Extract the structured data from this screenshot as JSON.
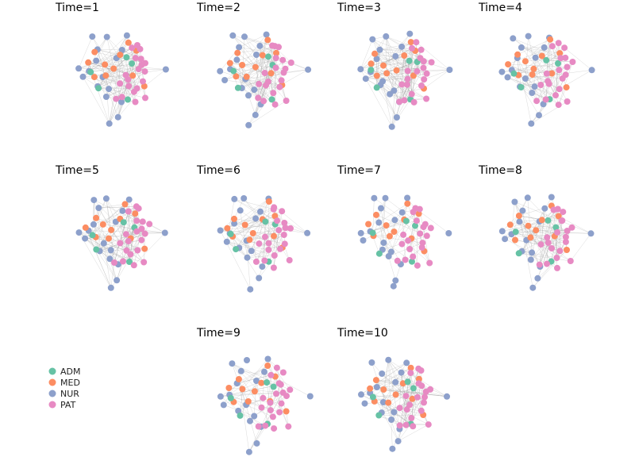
{
  "figure": {
    "panels": [
      {
        "title": "Time=1",
        "seed": 1,
        "edges": 150
      },
      {
        "title": "Time=2",
        "seed": 2,
        "edges": 130
      },
      {
        "title": "Time=3",
        "seed": 3,
        "edges": 170
      },
      {
        "title": "Time=4",
        "seed": 4,
        "edges": 120
      },
      {
        "title": "Time=5",
        "seed": 5,
        "edges": 160
      },
      {
        "title": "Time=6",
        "seed": 6,
        "edges": 110
      },
      {
        "title": "Time=7",
        "seed": 7,
        "edges": 60
      },
      {
        "title": "Time=8",
        "seed": 8,
        "edges": 140
      },
      {
        "title": "Time=9",
        "seed": 9,
        "edges": 70
      },
      {
        "title": "Time=10",
        "seed": 10,
        "edges": 120
      }
    ],
    "legend": [
      {
        "label": "ADM",
        "color": "#66c2a5"
      },
      {
        "label": "MED",
        "color": "#fc8d62"
      },
      {
        "label": "NUR",
        "color": "#8da0cb"
      },
      {
        "label": "PAT",
        "color": "#e78ac3"
      }
    ]
  }
}
